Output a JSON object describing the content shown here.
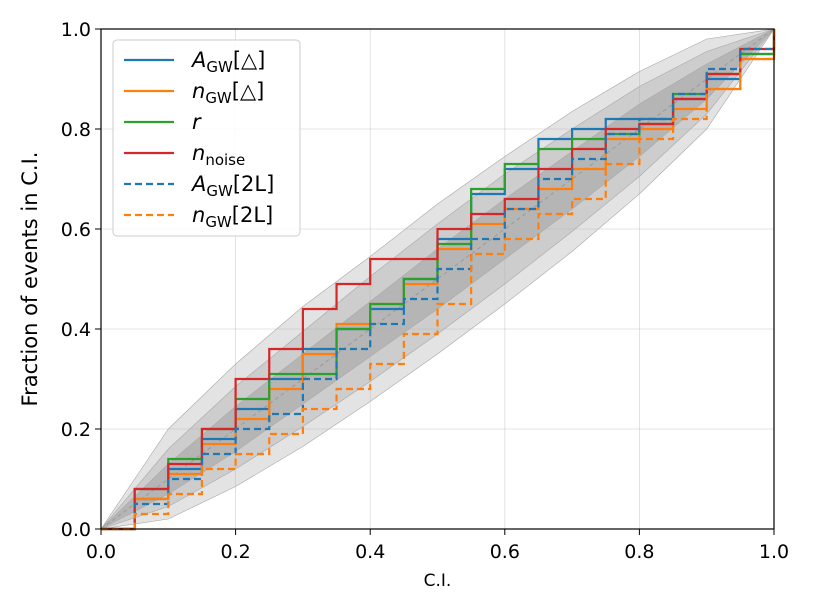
{
  "chart_data": {
    "type": "line",
    "title": "",
    "xlabel": "C.I.",
    "ylabel": "Fraction of events in C.I.",
    "xlim": [
      0,
      1
    ],
    "ylim": [
      0,
      1
    ],
    "grid": true,
    "legend_position": "upper-left",
    "x_ticks": [
      "0.0",
      "0.2",
      "0.4",
      "0.6",
      "0.8",
      "1.0"
    ],
    "y_ticks": [
      "0.0",
      "0.2",
      "0.4",
      "0.6",
      "0.8",
      "1.0"
    ],
    "bands": [
      {
        "name": "3-sigma",
        "color": "#e3e3e3",
        "x": [
          0,
          0.1,
          0.2,
          0.3,
          0.4,
          0.5,
          0.6,
          0.7,
          0.8,
          0.9,
          1.0
        ],
        "lower": [
          0,
          0.02,
          0.085,
          0.165,
          0.255,
          0.35,
          0.45,
          0.555,
          0.67,
          0.8,
          1.0
        ],
        "upper": [
          0,
          0.2,
          0.33,
          0.445,
          0.545,
          0.65,
          0.745,
          0.835,
          0.915,
          0.98,
          1.0
        ]
      },
      {
        "name": "2-sigma",
        "color": "#cdcdcd",
        "x": [
          0,
          0.1,
          0.2,
          0.3,
          0.4,
          0.5,
          0.6,
          0.7,
          0.8,
          0.9,
          1.0
        ],
        "lower": [
          0,
          0.045,
          0.12,
          0.205,
          0.295,
          0.39,
          0.49,
          0.595,
          0.705,
          0.83,
          1.0
        ],
        "upper": [
          0,
          0.16,
          0.285,
          0.395,
          0.505,
          0.61,
          0.71,
          0.8,
          0.885,
          0.955,
          1.0
        ]
      },
      {
        "name": "1-sigma",
        "color": "#b5b5b5",
        "x": [
          0,
          0.1,
          0.2,
          0.3,
          0.4,
          0.5,
          0.6,
          0.7,
          0.8,
          0.9,
          1.0
        ],
        "lower": [
          0,
          0.07,
          0.155,
          0.25,
          0.345,
          0.44,
          0.54,
          0.64,
          0.745,
          0.86,
          1.0
        ],
        "upper": [
          0,
          0.13,
          0.245,
          0.35,
          0.455,
          0.56,
          0.66,
          0.755,
          0.85,
          0.93,
          1.0
        ]
      }
    ],
    "series": [
      {
        "name": "A_GW[△]",
        "label_main": "A",
        "label_sub": "GW",
        "label_suffix": "[△]",
        "color": "#1f77b4",
        "dash": "solid",
        "x": [
          0,
          0.05,
          0.1,
          0.15,
          0.2,
          0.25,
          0.3,
          0.35,
          0.4,
          0.45,
          0.5,
          0.55,
          0.6,
          0.65,
          0.7,
          0.75,
          0.8,
          0.85,
          0.9,
          0.95,
          1.0
        ],
        "y": [
          0,
          0.06,
          0.12,
          0.18,
          0.24,
          0.3,
          0.36,
          0.4,
          0.44,
          0.5,
          0.58,
          0.67,
          0.72,
          0.78,
          0.8,
          0.82,
          0.82,
          0.86,
          0.9,
          0.95,
          1.0
        ]
      },
      {
        "name": "n_GW[△]",
        "label_main": "n",
        "label_sub": "GW",
        "label_suffix": "[△]",
        "color": "#ff7f0e",
        "dash": "solid",
        "x": [
          0,
          0.05,
          0.1,
          0.15,
          0.2,
          0.25,
          0.3,
          0.35,
          0.4,
          0.45,
          0.5,
          0.55,
          0.6,
          0.65,
          0.7,
          0.75,
          0.8,
          0.85,
          0.9,
          0.95,
          1.0
        ],
        "y": [
          0,
          0.06,
          0.11,
          0.17,
          0.22,
          0.28,
          0.35,
          0.41,
          0.45,
          0.49,
          0.56,
          0.61,
          0.64,
          0.68,
          0.72,
          0.78,
          0.8,
          0.84,
          0.88,
          0.94,
          1.0
        ]
      },
      {
        "name": "r",
        "label_main": "r",
        "label_sub": "",
        "label_suffix": "",
        "color": "#2ca02c",
        "dash": "solid",
        "x": [
          0,
          0.05,
          0.1,
          0.15,
          0.2,
          0.25,
          0.3,
          0.35,
          0.4,
          0.45,
          0.5,
          0.55,
          0.6,
          0.65,
          0.7,
          0.75,
          0.8,
          0.85,
          0.9,
          0.95,
          1.0
        ],
        "y": [
          0,
          0.08,
          0.14,
          0.2,
          0.26,
          0.31,
          0.31,
          0.4,
          0.45,
          0.5,
          0.57,
          0.68,
          0.73,
          0.76,
          0.78,
          0.79,
          0.81,
          0.87,
          0.91,
          0.95,
          1.0
        ]
      },
      {
        "name": "n_noise",
        "label_main": "n",
        "label_sub": "noise",
        "label_suffix": "",
        "color": "#d62728",
        "dash": "solid",
        "x": [
          0,
          0.05,
          0.1,
          0.15,
          0.2,
          0.25,
          0.3,
          0.35,
          0.4,
          0.45,
          0.5,
          0.55,
          0.6,
          0.65,
          0.7,
          0.75,
          0.8,
          0.85,
          0.9,
          0.95,
          1.0
        ],
        "y": [
          0,
          0.08,
          0.13,
          0.2,
          0.3,
          0.36,
          0.44,
          0.49,
          0.54,
          0.54,
          0.6,
          0.63,
          0.66,
          0.72,
          0.76,
          0.8,
          0.81,
          0.86,
          0.91,
          0.96,
          1.0
        ]
      },
      {
        "name": "A_GW[2L]",
        "label_main": "A",
        "label_sub": "GW",
        "label_suffix": "[2L]",
        "color": "#1f77b4",
        "dash": "dashed",
        "x": [
          0,
          0.05,
          0.1,
          0.15,
          0.2,
          0.25,
          0.3,
          0.35,
          0.4,
          0.45,
          0.5,
          0.55,
          0.6,
          0.65,
          0.7,
          0.75,
          0.8,
          0.85,
          0.9,
          0.95,
          1.0
        ],
        "y": [
          0,
          0.05,
          0.1,
          0.15,
          0.2,
          0.23,
          0.3,
          0.36,
          0.41,
          0.46,
          0.52,
          0.58,
          0.64,
          0.7,
          0.74,
          0.79,
          0.82,
          0.87,
          0.92,
          0.96,
          1.0
        ]
      },
      {
        "name": "n_GW[2L]",
        "label_main": "n",
        "label_sub": "GW",
        "label_suffix": "[2L]",
        "color": "#ff7f0e",
        "dash": "dashed",
        "x": [
          0,
          0.05,
          0.1,
          0.15,
          0.2,
          0.25,
          0.3,
          0.35,
          0.4,
          0.45,
          0.5,
          0.55,
          0.6,
          0.65,
          0.7,
          0.75,
          0.8,
          0.85,
          0.9,
          0.95,
          1.0
        ],
        "y": [
          0,
          0.03,
          0.07,
          0.12,
          0.15,
          0.19,
          0.24,
          0.28,
          0.33,
          0.39,
          0.45,
          0.55,
          0.58,
          0.63,
          0.66,
          0.73,
          0.78,
          0.82,
          0.88,
          0.94,
          1.0
        ]
      }
    ]
  }
}
